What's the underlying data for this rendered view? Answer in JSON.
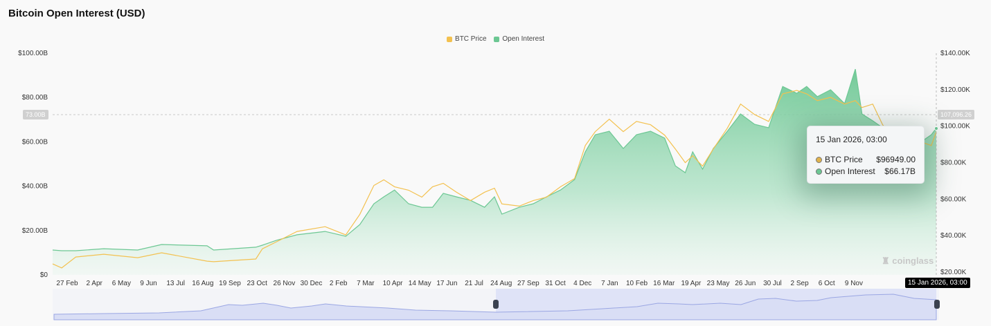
{
  "title": "Bitcoin Open Interest (USD)",
  "watermark": "coinglass",
  "colors": {
    "btc_price": "#f3c14f",
    "open_interest": "#6cc793",
    "navigator": "#a9b3ea"
  },
  "tooltip": {
    "date": "15 Jan 2026, 03:00",
    "rows": [
      {
        "label": "BTC Price",
        "value": "$96949.00",
        "color": "#e0b34c"
      },
      {
        "label": "Open Interest",
        "value": "$66.17B",
        "color": "#6cc793"
      }
    ]
  },
  "crosshair": {
    "x_label": "15 Jan 2026, 03:00",
    "left_label": "73.00B",
    "right_label": "107,096.26"
  },
  "chart_data": {
    "type": "line+area",
    "title": "Bitcoin Open Interest (USD)",
    "legend": [
      "BTC Price",
      "Open Interest"
    ],
    "legend_position": "top",
    "grid": false,
    "y_left": {
      "min": 0,
      "max": 100,
      "unit": "B USD",
      "ticks": [
        "$0",
        "$20.00B",
        "$40.00B",
        "$60.00B",
        "$80.00B",
        "$100.00B"
      ]
    },
    "y_right": {
      "min": 20,
      "max": 140,
      "unit": "K USD",
      "ticks": [
        "$20.00K",
        "$40.00K",
        "$60.00K",
        "$80.00K",
        "$100.00K",
        "$120.00K",
        "$140.00K"
      ]
    },
    "x_ticks": [
      "27 Feb",
      "2 Apr",
      "6 May",
      "9 Jun",
      "13 Jul",
      "16 Aug",
      "19 Sep",
      "23 Oct",
      "26 Nov",
      "30 Dec",
      "2 Feb",
      "7 Mar",
      "10 Apr",
      "14 May",
      "17 Jun",
      "21 Jul",
      "24 Aug",
      "27 Sep",
      "31 Oct",
      "4 Dec",
      "7 Jan",
      "10 Feb",
      "16 Mar",
      "19 Apr",
      "23 May",
      "26 Jun",
      "30 Jul",
      "2 Sep",
      "6 Oct",
      "9 Nov"
    ],
    "x": [
      "2023-02-10",
      "2023-02-21",
      "2023-03-10",
      "2023-04-13",
      "2023-05-24",
      "2023-06-22",
      "2023-08-16",
      "2023-08-24",
      "2023-10-14",
      "2023-10-22",
      "2023-11-08",
      "2023-12-03",
      "2024-01-06",
      "2024-01-31",
      "2024-02-17",
      "2024-03-05",
      "2024-03-17",
      "2024-03-30",
      "2024-04-16",
      "2024-05-02",
      "2024-05-15",
      "2024-05-28",
      "2024-06-13",
      "2024-06-30",
      "2024-07-17",
      "2024-07-29",
      "2024-08-07",
      "2024-08-28",
      "2024-09-14",
      "2024-09-30",
      "2024-10-17",
      "2024-11-03",
      "2024-11-16",
      "2024-11-28",
      "2024-12-15",
      "2025-01-01",
      "2025-01-17",
      "2025-02-03",
      "2025-02-20",
      "2025-03-05",
      "2025-03-17",
      "2025-03-26",
      "2025-04-07",
      "2025-04-20",
      "2025-05-07",
      "2025-05-23",
      "2025-06-09",
      "2025-06-26",
      "2025-07-13",
      "2025-07-30",
      "2025-08-11",
      "2025-08-24",
      "2025-09-09",
      "2025-09-26",
      "2025-10-09",
      "2025-10-17",
      "2025-10-30",
      "2025-11-11",
      "2025-11-24",
      "2025-12-11",
      "2025-12-28",
      "2026-01-09",
      "2026-01-15"
    ],
    "series": [
      {
        "name": "Open Interest",
        "axis": "left",
        "values": [
          11.2,
          10.9,
          10.9,
          11.8,
          11.2,
          13.7,
          13.1,
          11.2,
          12.5,
          13.4,
          15.6,
          18.1,
          19.6,
          17.4,
          22.7,
          32.1,
          35.2,
          38.3,
          32.1,
          30.5,
          30.5,
          36.8,
          35.2,
          33.6,
          30.5,
          35.2,
          27.4,
          30.5,
          32.1,
          35.2,
          38.3,
          43.0,
          55.5,
          63.2,
          64.8,
          57.0,
          63.2,
          64.8,
          61.7,
          49.2,
          46.1,
          55.5,
          47.7,
          57.0,
          64.8,
          72.6,
          67.9,
          66.4,
          85.0,
          81.9,
          85.0,
          80.4,
          83.5,
          77.3,
          92.8,
          72.6,
          69.5,
          66.4,
          58.6,
          53.9,
          60.1,
          63.2,
          66.17
        ]
      },
      {
        "name": "BTC Price",
        "axis": "right",
        "values": [
          24.5,
          22.3,
          28.3,
          29.8,
          27.9,
          30.6,
          26.0,
          25.7,
          27.2,
          32.8,
          36.6,
          42.3,
          44.9,
          40.4,
          51.7,
          67.5,
          70.6,
          66.8,
          64.9,
          61.1,
          66.8,
          68.7,
          63.8,
          59.2,
          63.8,
          66.0,
          57.4,
          56.2,
          59.2,
          61.1,
          66.8,
          71.3,
          89.4,
          97.0,
          103.8,
          97.0,
          102.6,
          100.8,
          95.1,
          87.5,
          80.0,
          83.8,
          78.1,
          87.5,
          98.9,
          112.1,
          106.4,
          102.6,
          117.7,
          119.6,
          117.7,
          114.0,
          115.8,
          112.1,
          114.0,
          110.2,
          112.1,
          100.8,
          93.2,
          87.5,
          91.3,
          89.4,
          96.949
        ]
      }
    ]
  }
}
